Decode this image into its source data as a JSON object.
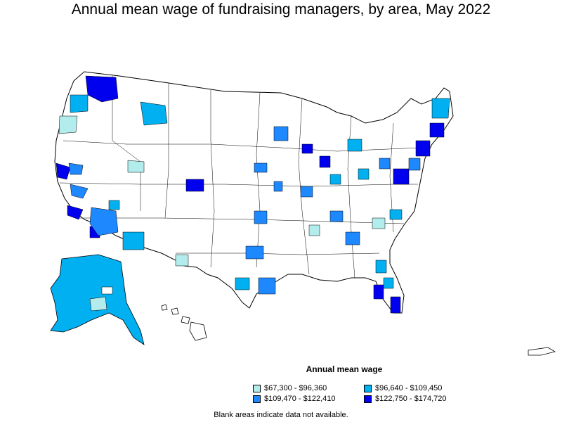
{
  "title": "Annual mean wage of fundraising managers, by area, May 2022",
  "legend": {
    "title": "Annual mean wage",
    "items": [
      {
        "label": "$67,300 - $96,360",
        "color": "#b3ecec"
      },
      {
        "label": "$96,640 - $109,450",
        "color": "#00b0f0"
      },
      {
        "label": "$109,470 - $122,410",
        "color": "#1e88ff"
      },
      {
        "label": "$122,750 - $174,720",
        "color": "#0000ee"
      }
    ]
  },
  "note": "Blank areas indicate data not available."
}
